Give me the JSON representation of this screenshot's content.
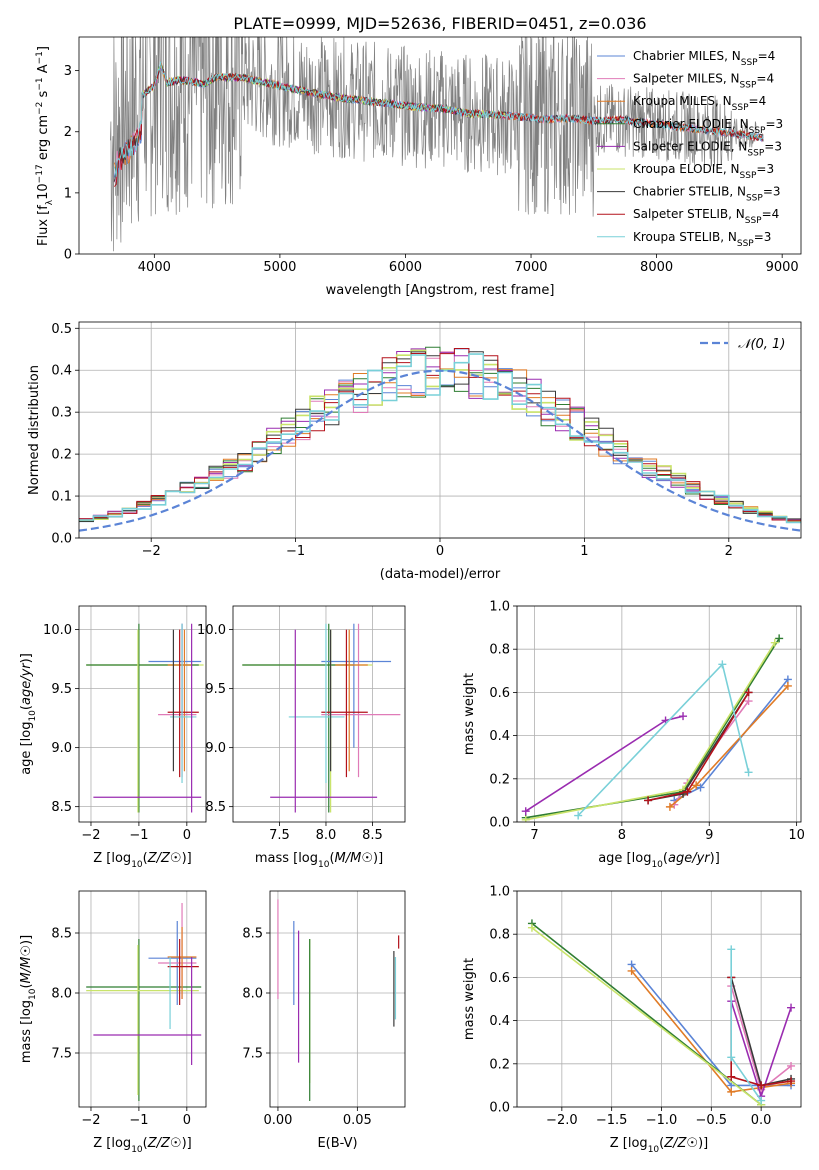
{
  "figure": {
    "title": "PLATE=0999, MJD=52636, FIBERID=0451, z=0.036"
  },
  "colors": {
    "Chabrier MILES": "#5b84d6",
    "Salpeter MILES": "#e07bb8",
    "Kroupa MILES": "#e07b26",
    "Chabrier ELODIE": "#2f7d32",
    "Salpeter ELODIE": "#9a2cb0",
    "Kroupa ELODIE": "#c9e36a",
    "Chabrier STELIB": "#3a3a3a",
    "Salpeter STELIB": "#b3121b",
    "Kroupa STELIB": "#79d0d8",
    "data": "#808080",
    "normal": "#5b84d6"
  },
  "chart_data": [
    {
      "id": "spectrum",
      "type": "line",
      "xlabel": "wavelength [Angstrom, rest frame]",
      "ylabel_parts": [
        "Flux [f",
        "λ",
        "10",
        "−17",
        " erg cm",
        "−2",
        " s",
        "−1",
        " A",
        "−1",
        "]"
      ],
      "xlim": [
        3400,
        9150
      ],
      "ylim": [
        0,
        3.55
      ],
      "xticks": [
        4000,
        5000,
        6000,
        7000,
        8000,
        9000
      ],
      "yticks": [
        0,
        1,
        2,
        3
      ],
      "data_x_range": [
        3650,
        8800
      ],
      "model_curve": {
        "x": [
          3700,
          3800,
          3900,
          4000,
          4050,
          4100,
          4200,
          4300,
          4400,
          4500,
          4700,
          4900,
          5100,
          5300,
          5500,
          5700,
          5900,
          6100,
          6300,
          6500,
          6700,
          6900,
          7100,
          7300,
          7500,
          7700,
          7900,
          8100,
          8300,
          8500,
          8700,
          8850
        ],
        "y": [
          2.1,
          2.3,
          2.6,
          2.75,
          3.1,
          2.8,
          2.85,
          2.82,
          2.78,
          2.9,
          2.88,
          2.8,
          2.7,
          2.62,
          2.55,
          2.5,
          2.45,
          2.4,
          2.38,
          2.3,
          2.28,
          2.25,
          2.2,
          2.22,
          2.18,
          2.2,
          2.15,
          2.1,
          2.05,
          2.0,
          1.95,
          1.9
        ]
      },
      "legend": [
        {
          "name": "Chabrier MILES",
          "nssp": "4"
        },
        {
          "name": "Salpeter MILES",
          "nssp": "4"
        },
        {
          "name": "Kroupa MILES",
          "nssp": "4"
        },
        {
          "name": "Chabrier ELODIE",
          "nssp": "3"
        },
        {
          "name": "Salpeter ELODIE",
          "nssp": "3"
        },
        {
          "name": "Kroupa ELODIE",
          "nssp": "3"
        },
        {
          "name": "Chabrier STELIB",
          "nssp": "3"
        },
        {
          "name": "Salpeter STELIB",
          "nssp": "4"
        },
        {
          "name": "Kroupa STELIB",
          "nssp": "3"
        }
      ]
    },
    {
      "id": "residuals",
      "type": "histogram",
      "xlabel": "(data-model)/error",
      "ylabel": "Normed distribution",
      "xlim": [
        -2.5,
        2.5
      ],
      "ylim": [
        0,
        0.515
      ],
      "xticks": [
        -2,
        -1,
        0,
        1,
        2
      ],
      "yticks": [
        0.0,
        0.1,
        0.2,
        0.3,
        0.4,
        0.5
      ],
      "bin_width": 0.1,
      "legend_label": "𝒩(0, 1)",
      "series_order": [
        "Chabrier MILES",
        "Salpeter MILES",
        "Kroupa MILES",
        "Chabrier ELODIE",
        "Salpeter ELODIE",
        "Kroupa ELODIE",
        "Chabrier STELIB",
        "Salpeter STELIB",
        "Kroupa STELIB"
      ]
    },
    {
      "id": "z-age",
      "type": "errorbar",
      "xlabel": "Z [log10(Z/Z☉)]",
      "ylabel": "age  [log10(age/yr)]",
      "xlim": [
        -2.25,
        0.4
      ],
      "ylim": [
        8.37,
        10.2
      ],
      "xticks": [
        -2,
        -1,
        0
      ],
      "yticks": [
        8.5,
        9.0,
        9.5,
        10.0
      ],
      "points": [
        {
          "s": "Kroupa ELODIE",
          "x": -0.5,
          "y": 9.7,
          "xe": [
            -2.1,
            0.35
          ],
          "ye": [
            9.7,
            9.7
          ]
        },
        {
          "s": "Chabrier ELODIE",
          "x": -1.0,
          "y": 9.7,
          "xe": [
            -2.1,
            0.25
          ],
          "ye": [
            8.45,
            10.05
          ]
        },
        {
          "s": "Kroupa ELODIE",
          "x": -1.02,
          "y": 9.7,
          "xe": [
            -1.02,
            -1.02
          ],
          "ye": [
            8.45,
            10.0
          ]
        },
        {
          "s": "Chabrier MILES",
          "x": -0.1,
          "y": 9.73,
          "xe": [
            -0.8,
            0.3
          ],
          "ye": [
            9.0,
            10.05
          ]
        },
        {
          "s": "Salpeter MILES",
          "x": -0.1,
          "y": 9.28,
          "xe": [
            -0.6,
            0.2
          ],
          "ye": [
            8.75,
            10.05
          ]
        },
        {
          "s": "Kroupa MILES",
          "x": -0.05,
          "y": 9.7,
          "xe": [
            -0.4,
            0.1
          ],
          "ye": [
            8.8,
            10.0
          ]
        },
        {
          "s": "Salpeter STELIB",
          "x": -0.15,
          "y": 9.3,
          "xe": [
            -0.4,
            0.25
          ],
          "ye": [
            8.75,
            10.0
          ]
        },
        {
          "s": "Kroupa STELIB",
          "x": -0.1,
          "y": 9.26,
          "xe": [
            -0.35,
            0.2
          ],
          "ye": [
            8.7,
            10.05
          ]
        },
        {
          "s": "Chabrier STELIB",
          "x": -0.28,
          "y": 9.7,
          "xe": [
            -0.28,
            -0.28
          ],
          "ye": [
            8.8,
            10.0
          ]
        },
        {
          "s": "Salpeter ELODIE",
          "x": -0.5,
          "y": 8.58,
          "xe": [
            -1.95,
            0.3
          ],
          "ye": [
            8.58,
            8.58
          ]
        },
        {
          "s": "Salpeter ELODIE",
          "x": 0.1,
          "y": 9.0,
          "xe": [
            0.1,
            0.1
          ],
          "ye": [
            8.45,
            10.05
          ]
        }
      ]
    },
    {
      "id": "mass-age",
      "type": "errorbar",
      "xlabel": "mass [log10(M/M☉)]",
      "ylabel": "",
      "xlim": [
        7.0,
        8.85
      ],
      "ylim": [
        8.37,
        10.2
      ],
      "xticks": [
        7.5,
        8.0,
        8.5
      ],
      "yticks": [
        8.5,
        9.0,
        9.5,
        10.0
      ],
      "points": [
        {
          "s": "Kroupa ELODIE",
          "x": 8.0,
          "y": 9.7,
          "xe": [
            7.1,
            8.5
          ],
          "ye": [
            9.7,
            9.7
          ]
        },
        {
          "s": "Chabrier ELODIE",
          "x": 8.03,
          "y": 9.7,
          "xe": [
            7.1,
            8.3
          ],
          "ye": [
            8.45,
            10.05
          ]
        },
        {
          "s": "Kroupa ELODIE",
          "x": 8.05,
          "y": 9.7,
          "xe": [
            8.05,
            8.05
          ],
          "ye": [
            8.45,
            10.0
          ]
        },
        {
          "s": "Chabrier MILES",
          "x": 8.3,
          "y": 9.73,
          "xe": [
            7.95,
            8.7
          ],
          "ye": [
            9.0,
            10.05
          ]
        },
        {
          "s": "Salpeter MILES",
          "x": 8.35,
          "y": 9.28,
          "xe": [
            7.95,
            8.8
          ],
          "ye": [
            8.75,
            10.05
          ]
        },
        {
          "s": "Kroupa MILES",
          "x": 8.25,
          "y": 9.7,
          "xe": [
            8.1,
            8.45
          ],
          "ye": [
            8.8,
            10.0
          ]
        },
        {
          "s": "Salpeter STELIB",
          "x": 8.22,
          "y": 9.3,
          "xe": [
            7.95,
            8.45
          ],
          "ye": [
            8.75,
            10.0
          ]
        },
        {
          "s": "Kroupa STELIB",
          "x": 8.0,
          "y": 9.26,
          "xe": [
            7.6,
            8.2
          ],
          "ye": [
            8.7,
            10.05
          ]
        },
        {
          "s": "Chabrier STELIB",
          "x": 8.05,
          "y": 9.7,
          "xe": [
            8.05,
            8.05
          ],
          "ye": [
            8.8,
            10.0
          ]
        },
        {
          "s": "Salpeter ELODIE",
          "x": 8.1,
          "y": 8.58,
          "xe": [
            7.4,
            8.55
          ],
          "ye": [
            8.58,
            8.58
          ]
        },
        {
          "s": "Salpeter ELODIE",
          "x": 7.67,
          "y": 9.0,
          "xe": [
            7.67,
            7.67
          ],
          "ye": [
            8.45,
            10.0
          ]
        }
      ]
    },
    {
      "id": "age-weight",
      "type": "line",
      "xlabel": "age  [log10(age/yr)]",
      "ylabel": "mass weight",
      "xlim": [
        6.8,
        10.05
      ],
      "ylim": [
        0,
        1.0
      ],
      "xticks": [
        7,
        8,
        9,
        10
      ],
      "yticks": [
        0.0,
        0.2,
        0.4,
        0.6,
        0.8,
        1.0
      ],
      "series": [
        {
          "s": "Chabrier MILES",
          "x": [
            8.6,
            8.9,
            9.9
          ],
          "y": [
            0.1,
            0.16,
            0.66
          ]
        },
        {
          "s": "Salpeter MILES",
          "x": [
            8.6,
            8.75,
            9.45
          ],
          "y": [
            0.08,
            0.18,
            0.56
          ]
        },
        {
          "s": "Kroupa MILES",
          "x": [
            8.55,
            8.85,
            9.9
          ],
          "y": [
            0.07,
            0.17,
            0.63
          ]
        },
        {
          "s": "Chabrier ELODIE",
          "x": [
            6.9,
            8.7,
            9.8
          ],
          "y": [
            0.02,
            0.14,
            0.85
          ]
        },
        {
          "s": "Salpeter ELODIE",
          "x": [
            6.9,
            8.5,
            8.7
          ],
          "y": [
            0.05,
            0.47,
            0.49
          ]
        },
        {
          "s": "Kroupa ELODIE",
          "x": [
            6.9,
            8.7,
            9.75
          ],
          "y": [
            0.01,
            0.15,
            0.83
          ]
        },
        {
          "s": "Chabrier STELIB",
          "x": [
            8.3,
            8.7,
            9.45
          ],
          "y": [
            0.1,
            0.13,
            0.6
          ]
        },
        {
          "s": "Salpeter STELIB",
          "x": [
            8.3,
            8.75,
            9.45
          ],
          "y": [
            0.1,
            0.14,
            0.6
          ]
        },
        {
          "s": "Kroupa STELIB",
          "x": [
            7.5,
            9.15,
            9.45
          ],
          "y": [
            0.03,
            0.73,
            0.23
          ]
        }
      ]
    },
    {
      "id": "z-mass",
      "type": "errorbar",
      "xlabel": "Z [log10(Z/Z☉)]",
      "ylabel": "mass [log10(M/M☉)]",
      "xlim": [
        -2.25,
        0.4
      ],
      "ylim": [
        7.05,
        8.85
      ],
      "xticks": [
        -2,
        -1,
        0
      ],
      "yticks": [
        7.5,
        8.0,
        8.5
      ],
      "points": [
        {
          "s": "Chabrier ELODIE",
          "x": -1.0,
          "y": 8.05,
          "xe": [
            -2.1,
            0.3
          ],
          "ye": [
            7.1,
            8.45
          ]
        },
        {
          "s": "Kroupa ELODIE",
          "x": -1.02,
          "y": 8.02,
          "xe": [
            -2.1,
            0.25
          ],
          "ye": [
            7.15,
            8.4
          ]
        },
        {
          "s": "Chabrier MILES",
          "x": -0.2,
          "y": 8.29,
          "xe": [
            -0.8,
            0.2
          ],
          "ye": [
            7.9,
            8.6
          ]
        },
        {
          "s": "Salpeter MILES",
          "x": -0.1,
          "y": 8.25,
          "xe": [
            -0.6,
            0.2
          ],
          "ye": [
            7.95,
            8.75
          ]
        },
        {
          "s": "Kroupa MILES",
          "x": -0.1,
          "y": 8.3,
          "xe": [
            -0.4,
            0.2
          ],
          "ye": [
            7.95,
            8.55
          ]
        },
        {
          "s": "Salpeter STELIB",
          "x": -0.15,
          "y": 8.22,
          "xe": [
            -0.4,
            0.25
          ],
          "ye": [
            7.9,
            8.45
          ]
        },
        {
          "s": "Kroupa STELIB",
          "x": -0.35,
          "y": 8.0,
          "xe": [
            -0.35,
            -0.35
          ],
          "ye": [
            7.7,
            8.3
          ]
        },
        {
          "s": "Salpeter ELODIE",
          "x": -0.5,
          "y": 7.65,
          "xe": [
            -1.95,
            0.3
          ],
          "ye": [
            7.65,
            7.65
          ]
        },
        {
          "s": "Salpeter ELODIE",
          "x": 0.1,
          "y": 8.0,
          "xe": [
            0.1,
            0.1
          ],
          "ye": [
            7.4,
            8.3
          ]
        }
      ]
    },
    {
      "id": "ebv-mass",
      "type": "errorbar",
      "xlabel": "E(B-V)",
      "ylabel": "",
      "xlim": [
        -0.005,
        0.08
      ],
      "ylim": [
        7.05,
        8.85
      ],
      "xticks": [
        0.0,
        0.05
      ],
      "yticks": [
        7.5,
        8.0,
        8.5
      ],
      "vlines": [
        {
          "s": "Salpeter MILES",
          "x": 0.0,
          "y": [
            7.95,
            8.78
          ]
        },
        {
          "s": "Chabrier MILES",
          "x": 0.01,
          "y": [
            7.9,
            8.6
          ]
        },
        {
          "s": "Salpeter ELODIE",
          "x": 0.013,
          "y": [
            7.42,
            8.52
          ]
        },
        {
          "s": "Kroupa ELODIE",
          "x": 0.02,
          "y": [
            7.25,
            8.45
          ]
        },
        {
          "s": "Chabrier ELODIE",
          "x": 0.02,
          "y": [
            7.1,
            8.45
          ]
        },
        {
          "s": "Chabrier STELIB",
          "x": 0.073,
          "y": [
            7.72,
            8.35
          ]
        },
        {
          "s": "Kroupa STELIB",
          "x": 0.074,
          "y": [
            7.78,
            8.3
          ]
        },
        {
          "s": "Salpeter STELIB",
          "x": 0.076,
          "y": [
            8.37,
            8.48
          ]
        }
      ]
    },
    {
      "id": "z-weight",
      "type": "line",
      "xlabel": "Z [log10(Z/Z☉)]",
      "ylabel": "mass weight",
      "xlim": [
        -2.45,
        0.4
      ],
      "ylim": [
        0,
        1.0
      ],
      "xticks": [
        -2.0,
        -1.5,
        -1.0,
        -0.5,
        0.0
      ],
      "yticks": [
        0.0,
        0.2,
        0.4,
        0.6,
        0.8,
        1.0
      ],
      "series": [
        {
          "s": "Chabrier MILES",
          "x": [
            -1.3,
            -0.3,
            0.3
          ],
          "y": [
            0.66,
            0.1,
            0.1
          ]
        },
        {
          "s": "Salpeter MILES",
          "x": [
            -0.3,
            0.0,
            0.3
          ],
          "y": [
            0.56,
            0.08,
            0.19
          ]
        },
        {
          "s": "Kroupa MILES",
          "x": [
            -1.3,
            -0.3,
            0.3
          ],
          "y": [
            0.63,
            0.07,
            0.11
          ]
        },
        {
          "s": "Chabrier ELODIE",
          "x": [
            -2.3,
            0.0
          ],
          "y": [
            0.85,
            0.01
          ]
        },
        {
          "s": "Salpeter ELODIE",
          "x": [
            -0.3,
            0.0,
            0.3
          ],
          "y": [
            0.49,
            0.05,
            0.46
          ]
        },
        {
          "s": "Kroupa ELODIE",
          "x": [
            -2.3,
            0.0
          ],
          "y": [
            0.83,
            0.01
          ]
        },
        {
          "s": "Chabrier STELIB",
          "x": [
            -0.3,
            0.0,
            0.3
          ],
          "y": [
            0.6,
            0.1,
            0.13
          ]
        },
        {
          "s": "Salpeter STELIB",
          "x": [
            -0.3,
            -0.3,
            0.0,
            0.3
          ],
          "y": [
            0.6,
            0.14,
            0.1,
            0.12
          ]
        },
        {
          "s": "Kroupa STELIB",
          "x": [
            -0.3,
            -0.3,
            0.0
          ],
          "y": [
            0.73,
            0.23,
            0.03
          ]
        }
      ]
    }
  ]
}
